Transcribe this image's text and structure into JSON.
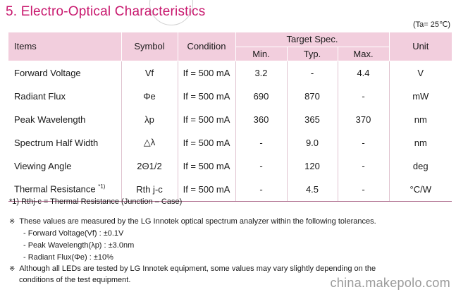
{
  "section_title": "5. Electro-Optical Characteristics",
  "ambient": "(Ta= 25℃)",
  "table": {
    "headers": {
      "items": "Items",
      "symbol": "Symbol",
      "condition": "Condition",
      "target_spec": "Target Spec.",
      "min": "Min.",
      "typ": "Typ.",
      "max": "Max.",
      "unit": "Unit"
    },
    "rows": [
      {
        "item": "Forward Voltage",
        "note": "",
        "symbol": "Vf",
        "condition": "If = 500 mA",
        "min": "3.2",
        "typ": "-",
        "max": "4.4",
        "unit": "V"
      },
      {
        "item": "Radiant Flux",
        "note": "",
        "symbol": "Φe",
        "condition": "If = 500 mA",
        "min": "690",
        "typ": "870",
        "max": "-",
        "unit": "mW"
      },
      {
        "item": "Peak Wavelength",
        "note": "",
        "symbol": "λp",
        "condition": "If = 500 mA",
        "min": "360",
        "typ": "365",
        "max": "370",
        "unit": "nm"
      },
      {
        "item": "Spectrum Half Width",
        "note": "",
        "symbol": "△λ",
        "condition": "If = 500 mA",
        "min": "-",
        "typ": "9.0",
        "max": "-",
        "unit": "nm"
      },
      {
        "item": "Viewing Angle",
        "note": "",
        "symbol": "2Θ1/2",
        "condition": "If = 500 mA",
        "min": "-",
        "typ": "120",
        "max": "-",
        "unit": "deg"
      },
      {
        "item": "Thermal Resistance",
        "note": "*1)",
        "symbol": "Rth j-c",
        "condition": "If = 500 mA",
        "min": "-",
        "typ": "4.5",
        "max": "-",
        "unit": "°C/W"
      }
    ]
  },
  "footnote": "*1) Rthj-c = Thermal Resistance (Junction – Case)",
  "notes": {
    "bullet": "※",
    "measured": "These values are measured by the LG Innotek optical spectrum analyzer within the following tolerances.",
    "tolerances": [
      "- Forward Voltage(Vf) : ±0.1V",
      "- Peak Wavelength(λp) : ±3.0nm",
      "- Radiant Flux(Φe) : ±10%"
    ],
    "although_line1": "Although all LEDs are tested by LG Innotek equipment, some values may vary slightly depending on the",
    "although_line2": "conditions of the test equipment."
  },
  "watermark": "china.makepolo.com"
}
